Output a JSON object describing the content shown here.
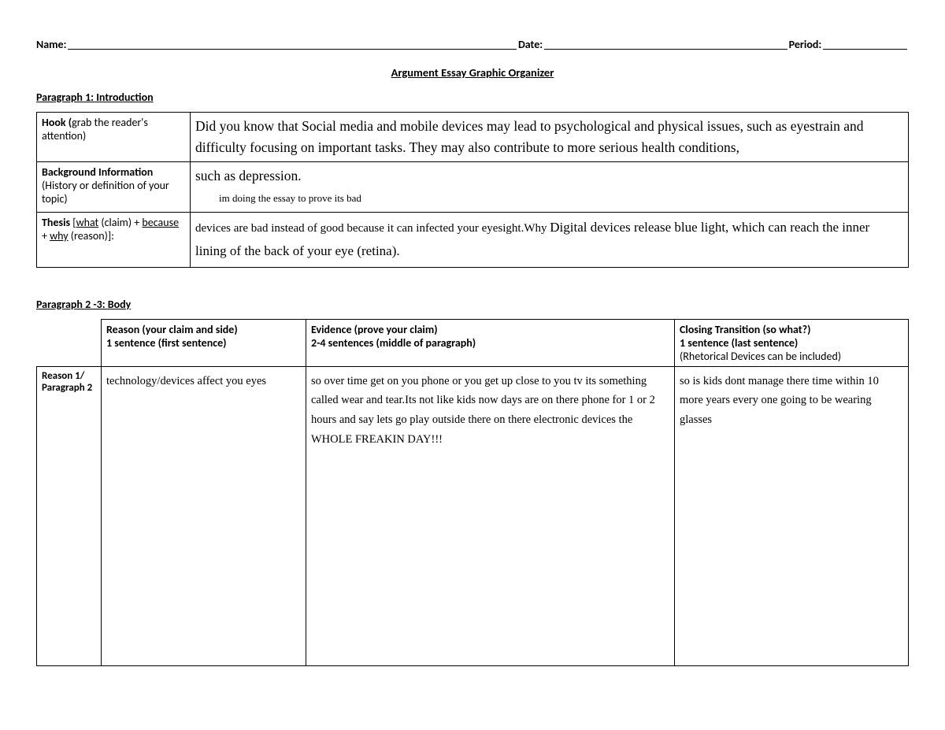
{
  "header": {
    "name_label": "Name:",
    "date_label": "Date:",
    "period_label": "Period:"
  },
  "title": "Argument Essay Graphic Organizer",
  "section1": {
    "heading": "Paragraph 1: Introduction",
    "rows": {
      "hook": {
        "label_bold": "Hook (",
        "label_rest": "grab the reader's attention)",
        "content": "Did you know that Social media and mobile devices may lead to psychological and physical issues, such as eyestrain and difficulty focusing on important tasks. They may also contribute to more serious health conditions,"
      },
      "background": {
        "label_bold": "Background Information",
        "label_rest": " (History or definition of your topic)",
        "content_line1": "such as depression.",
        "content_note": "im doing the essay to prove its bad"
      },
      "thesis": {
        "label_bold": "Thesis",
        "label_rest_a": " [",
        "label_u1": "what",
        "label_mid1": " (claim) + ",
        "label_u2": "because",
        "label_mid2": " + ",
        "label_u3": "why",
        "label_end": " (reason)]:",
        "content_small": "devices are bad instead of good because it can infected your eyesight.Why ",
        "content_big": "Digital devices release blue light, which can reach the inner lining of the back of your eye (retina)."
      }
    }
  },
  "section2": {
    "heading": "Paragraph 2 -3: Body",
    "headers": {
      "reason_b1": "Reason (your claim and side)",
      "reason_b2": "1 sentence (first sentence)",
      "evidence_b1": "Evidence (prove your claim)",
      "evidence_b2": "2-4 sentences (middle of paragraph)",
      "closing_b1": "Closing Transition (so what?)",
      "closing_b2": "1 sentence (last sentence)",
      "closing_note": "(Rhetorical Devices can be included)"
    },
    "row1": {
      "label": "Reason 1/ Paragraph 2",
      "reason": "technology/devices affect you eyes",
      "evidence": "so over time get on you phone or you get up close to you tv its something called wear and tear.Its not like kids now days are on there phone for 1 or 2 hours and say lets go play outside there on there electronic devices the WHOLE FREAKIN DAY!!!",
      "closing": "so is kids dont manage there time within 10 more years every one going to be wearing glasses"
    }
  }
}
